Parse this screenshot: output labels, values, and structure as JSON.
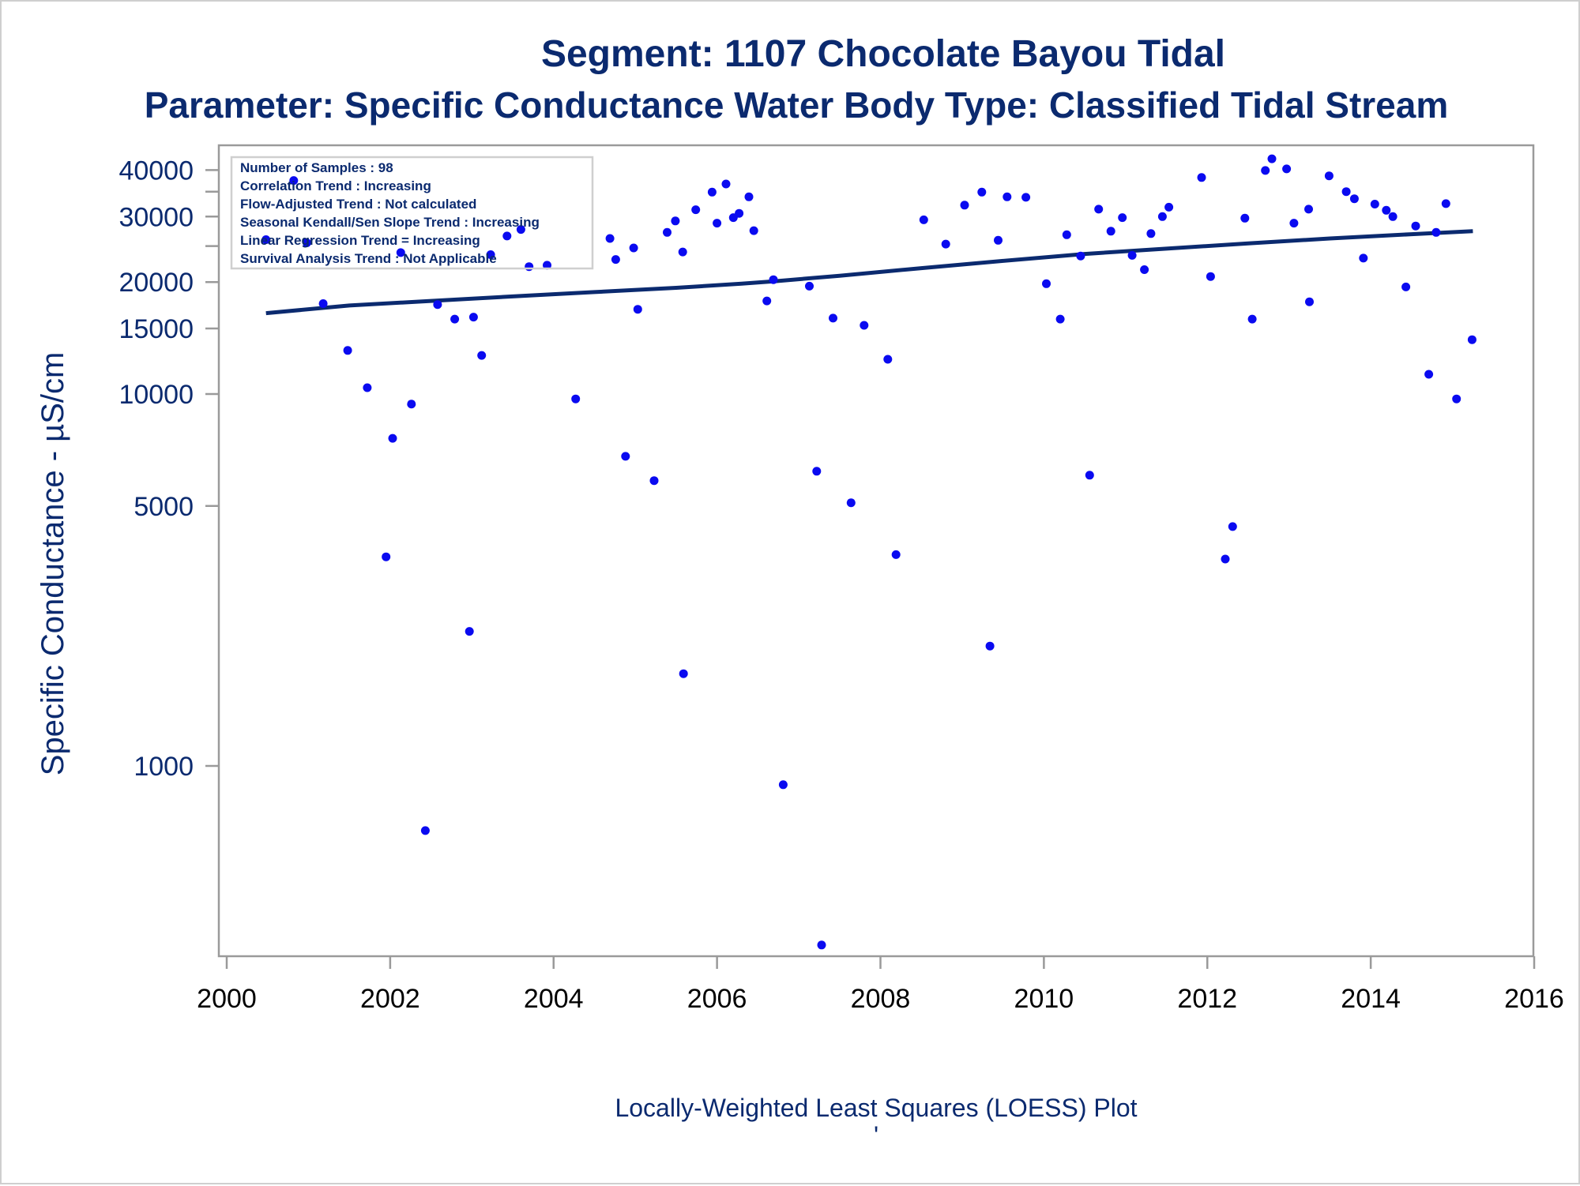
{
  "title_line1": "Segment: 1107  Chocolate Bayou Tidal",
  "title_line2": "Parameter: Specific Conductance   Water Body Type: Classified Tidal Stream",
  "footnote": "Locally-Weighted Least Squares (LOESS) Plot",
  "footnote_mark": "'",
  "stats_box": [
    "Number of Samples : 98",
    "Correlation Trend : Increasing",
    "Flow-Adjusted Trend : Not calculated",
    "Seasonal Kendall/Sen Slope Trend : Increasing",
    "Linear Regression Trend = Increasing",
    "Survival Analysis Trend : Not Applicable"
  ],
  "colors": {
    "title": "#0b2a6f",
    "points": "#0a0af0",
    "trend_line": "#0b2a6f",
    "axis": "#9a9a9a"
  },
  "chart_data": {
    "type": "scatter",
    "title": "Segment: 1107  Chocolate Bayou Tidal",
    "subtitle": "Parameter: Specific Conductance   Water Body Type: Classified Tidal Stream",
    "xlabel": "",
    "ylabel": "Specific Conductance -  µS/cm",
    "x_scale": "linear",
    "y_scale": "log",
    "xlim": [
      2000,
      2016
    ],
    "ylim": [
      320,
      45000
    ],
    "x_ticks": [
      2000,
      2002,
      2004,
      2006,
      2008,
      2010,
      2012,
      2014,
      2016
    ],
    "y_ticks": [
      1000,
      5000,
      10000,
      15000,
      20000,
      30000,
      40000
    ],
    "y_minor_ticks": [
      25000,
      35000
    ],
    "grid": false,
    "legend": "none",
    "series": [
      {
        "points": [
          [
            2000.48,
            26000
          ],
          [
            2000.82,
            37500
          ],
          [
            2000.98,
            25500
          ],
          [
            2001.18,
            17500
          ],
          [
            2001.48,
            13100
          ],
          [
            2001.72,
            10400
          ],
          [
            2001.95,
            3650
          ],
          [
            2002.03,
            7600
          ],
          [
            2002.13,
            24000
          ],
          [
            2002.26,
            9400
          ],
          [
            2002.43,
            670
          ],
          [
            2002.58,
            17400
          ],
          [
            2002.79,
            15900
          ],
          [
            2002.97,
            2300
          ],
          [
            2003.02,
            16100
          ],
          [
            2003.12,
            12700
          ],
          [
            2003.23,
            23700
          ],
          [
            2003.43,
            26600
          ],
          [
            2003.6,
            27700
          ],
          [
            2003.7,
            22000
          ],
          [
            2003.92,
            22200
          ],
          [
            2004.27,
            9700
          ],
          [
            2004.69,
            26200
          ],
          [
            2004.76,
            23000
          ],
          [
            2004.88,
            6800
          ],
          [
            2004.98,
            24700
          ],
          [
            2005.03,
            16900
          ],
          [
            2005.23,
            5850
          ],
          [
            2005.39,
            27200
          ],
          [
            2005.49,
            29200
          ],
          [
            2005.59,
            1770
          ],
          [
            2005.58,
            24100
          ],
          [
            2005.74,
            31300
          ],
          [
            2005.94,
            34900
          ],
          [
            2006.0,
            28800
          ],
          [
            2006.11,
            36700
          ],
          [
            2006.2,
            29800
          ],
          [
            2006.27,
            30600
          ],
          [
            2006.39,
            33900
          ],
          [
            2006.45,
            27500
          ],
          [
            2006.61,
            17800
          ],
          [
            2006.69,
            20300
          ],
          [
            2006.81,
            890
          ],
          [
            2007.13,
            19500
          ],
          [
            2007.22,
            6200
          ],
          [
            2007.28,
            330
          ],
          [
            2007.42,
            16000
          ],
          [
            2007.64,
            5100
          ],
          [
            2007.8,
            15300
          ],
          [
            2008.09,
            12400
          ],
          [
            2008.19,
            3700
          ],
          [
            2008.53,
            29400
          ],
          [
            2008.8,
            25300
          ],
          [
            2009.03,
            32200
          ],
          [
            2009.24,
            34900
          ],
          [
            2009.34,
            2100
          ],
          [
            2009.44,
            25900
          ],
          [
            2009.55,
            33900
          ],
          [
            2009.78,
            33800
          ],
          [
            2010.03,
            19800
          ],
          [
            2010.2,
            15900
          ],
          [
            2010.28,
            26800
          ],
          [
            2010.45,
            23500
          ],
          [
            2010.56,
            6050
          ],
          [
            2010.67,
            31400
          ],
          [
            2010.82,
            27400
          ],
          [
            2010.96,
            29800
          ],
          [
            2011.08,
            23600
          ],
          [
            2011.23,
            21600
          ],
          [
            2011.31,
            27000
          ],
          [
            2011.45,
            30000
          ],
          [
            2011.53,
            31800
          ],
          [
            2011.93,
            38200
          ],
          [
            2012.04,
            20700
          ],
          [
            2012.22,
            3600
          ],
          [
            2012.31,
            4400
          ],
          [
            2012.46,
            29700
          ],
          [
            2012.55,
            15900
          ],
          [
            2012.71,
            39900
          ],
          [
            2012.79,
            42900
          ],
          [
            2012.97,
            40300
          ],
          [
            2013.06,
            28800
          ],
          [
            2013.24,
            31400
          ],
          [
            2013.25,
            17700
          ],
          [
            2013.49,
            38600
          ],
          [
            2013.7,
            35000
          ],
          [
            2013.8,
            33500
          ],
          [
            2013.91,
            23200
          ],
          [
            2014.05,
            32400
          ],
          [
            2014.19,
            31200
          ],
          [
            2014.27,
            30000
          ],
          [
            2014.43,
            19400
          ],
          [
            2014.55,
            28300
          ],
          [
            2014.71,
            11300
          ],
          [
            2014.8,
            27200
          ],
          [
            2014.92,
            32500
          ],
          [
            2015.05,
            9700
          ],
          [
            2015.24,
            14000
          ]
        ]
      }
    ],
    "trend_line": [
      [
        2000.48,
        16500
      ],
      [
        2001.5,
        17300
      ],
      [
        2002.5,
        17800
      ],
      [
        2003.5,
        18300
      ],
      [
        2004.5,
        18800
      ],
      [
        2005.5,
        19300
      ],
      [
        2006.3,
        19800
      ],
      [
        2006.7,
        20100
      ],
      [
        2007.5,
        20800
      ],
      [
        2008.5,
        21800
      ],
      [
        2009.5,
        22800
      ],
      [
        2010.5,
        23800
      ],
      [
        2011.5,
        24600
      ],
      [
        2012.5,
        25400
      ],
      [
        2013.5,
        26200
      ],
      [
        2014.5,
        26900
      ],
      [
        2015.25,
        27400
      ]
    ]
  }
}
